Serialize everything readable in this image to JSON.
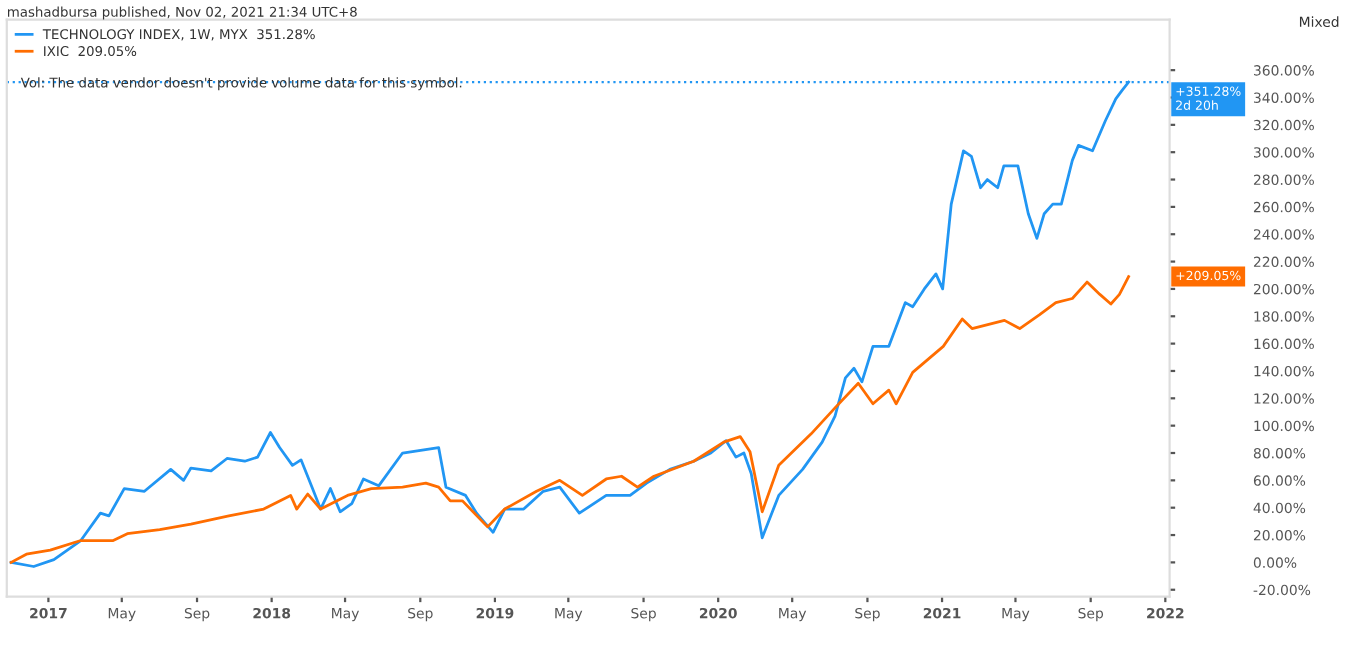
{
  "chart_data": {
    "type": "line",
    "title": "mashadbursa published, Nov 02, 2021 21:34 UTC+8",
    "series": [
      {
        "name": "TECHNOLOGY INDEX, 1W, MYX  351.28%",
        "color": "#2196f3",
        "x": [
          "2016-11-01",
          "2016-12-08",
          "2017-01-10",
          "2017-02-23",
          "2017-03-27",
          "2017-04-10",
          "2017-05-05",
          "2017-06-07",
          "2017-07-20",
          "2017-08-10",
          "2017-08-22",
          "2017-09-24",
          "2017-10-20",
          "2017-11-18",
          "2017-12-09",
          "2017-12-30",
          "2018-01-14",
          "2018-02-04",
          "2018-02-18",
          "2018-03-08",
          "2018-03-22",
          "2018-04-07",
          "2018-04-23",
          "2018-05-12",
          "2018-05-31",
          "2018-06-25",
          "2018-08-03",
          "2018-10-01",
          "2018-10-13",
          "2018-11-14",
          "2018-12-02",
          "2018-12-29",
          "2019-01-17",
          "2019-02-17",
          "2019-03-21",
          "2019-04-17",
          "2019-05-19",
          "2019-07-02",
          "2019-08-10",
          "2019-09-06",
          "2019-10-14",
          "2019-11-22",
          "2019-12-20",
          "2020-01-14",
          "2020-01-30",
          "2020-02-12",
          "2020-02-24",
          "2020-03-13",
          "2020-04-09",
          "2020-05-18",
          "2020-06-19",
          "2020-07-10",
          "2020-07-27",
          "2020-08-10",
          "2020-08-23",
          "2020-09-10",
          "2020-10-06",
          "2020-11-02",
          "2020-11-14",
          "2020-12-03",
          "2020-12-22",
          "2021-01-02",
          "2021-01-16",
          "2021-02-05",
          "2021-02-18",
          "2021-03-05",
          "2021-03-16",
          "2021-04-02",
          "2021-04-12",
          "2021-05-05",
          "2021-05-22",
          "2021-06-05",
          "2021-06-17",
          "2021-07-01",
          "2021-07-15",
          "2021-08-02",
          "2021-08-12",
          "2021-09-04",
          "2021-09-25",
          "2021-10-12",
          "2021-10-22",
          "2021-11-02"
        ],
        "values": [
          0,
          -3,
          2,
          16,
          36,
          34,
          54,
          52,
          68,
          60,
          69,
          67,
          76,
          74,
          77,
          95,
          84,
          71,
          75,
          55,
          39,
          54,
          37,
          43,
          61,
          56,
          80,
          84,
          55,
          49,
          36,
          22,
          39,
          39,
          52,
          55,
          36,
          49,
          49,
          58,
          68,
          74,
          80,
          89,
          77,
          80,
          65,
          18,
          49,
          68,
          88,
          107,
          135,
          142,
          132,
          158,
          158,
          190,
          187,
          200,
          211,
          200,
          262,
          301,
          297,
          274,
          280,
          274,
          290,
          290,
          255,
          237,
          255,
          262,
          262,
          294,
          305,
          301,
          323,
          339,
          345,
          351.28
        ]
      },
      {
        "name": "IXIC  209.05%",
        "color": "#ff6d00",
        "x": [
          "2016-11-01",
          "2016-11-26",
          "2017-01-04",
          "2017-02-23",
          "2017-04-17",
          "2017-05-10",
          "2017-07-02",
          "2017-08-22",
          "2017-10-23",
          "2017-12-19",
          "2018-02-01",
          "2018-02-11",
          "2018-03-01",
          "2018-03-22",
          "2018-05-05",
          "2018-06-13",
          "2018-08-03",
          "2018-09-10",
          "2018-10-01",
          "2018-10-20",
          "2018-11-09",
          "2018-12-20",
          "2019-01-17",
          "2019-03-10",
          "2019-04-17",
          "2019-05-24",
          "2019-07-02",
          "2019-07-27",
          "2019-08-22",
          "2019-09-18",
          "2019-11-22",
          "2020-01-10",
          "2020-02-06",
          "2020-02-22",
          "2020-03-13",
          "2020-04-09",
          "2020-06-01",
          "2020-07-10",
          "2020-08-17",
          "2020-09-10",
          "2020-10-06",
          "2020-10-18",
          "2020-11-14",
          "2021-01-03",
          "2021-02-03",
          "2021-02-19",
          "2021-04-13",
          "2021-05-08",
          "2021-06-09",
          "2021-07-06",
          "2021-08-02",
          "2021-08-26",
          "2021-09-16",
          "2021-10-04",
          "2021-10-18",
          "2021-11-02"
        ],
        "values": [
          0,
          6,
          9,
          16,
          16,
          21,
          24,
          28,
          34,
          39,
          49,
          39,
          50,
          39,
          49,
          54,
          55,
          58,
          55,
          45,
          45,
          26,
          39,
          52,
          60,
          49,
          61,
          63,
          55,
          63,
          74,
          88,
          92,
          81,
          37,
          71,
          94,
          113,
          131,
          116,
          126,
          116,
          139,
          158,
          178,
          171,
          177,
          171,
          181,
          190,
          193,
          205,
          196,
          189,
          196,
          209.05
        ]
      }
    ],
    "xlim": [
      "2016-10-25",
      "2022-01-08"
    ],
    "xticks": [
      {
        "value": "2017-01-01",
        "label": "2017"
      },
      {
        "value": "2017-05-01",
        "label": "May"
      },
      {
        "value": "2017-09-01",
        "label": "Sep"
      },
      {
        "value": "2018-01-01",
        "label": "2018"
      },
      {
        "value": "2018-05-01",
        "label": "May"
      },
      {
        "value": "2018-09-01",
        "label": "Sep"
      },
      {
        "value": "2019-01-01",
        "label": "2019"
      },
      {
        "value": "2019-05-01",
        "label": "May"
      },
      {
        "value": "2019-09-01",
        "label": "Sep"
      },
      {
        "value": "2020-01-01",
        "label": "2020"
      },
      {
        "value": "2020-05-01",
        "label": "May"
      },
      {
        "value": "2020-09-01",
        "label": "Sep"
      },
      {
        "value": "2021-01-01",
        "label": "2021"
      },
      {
        "value": "2021-05-01",
        "label": "May"
      },
      {
        "value": "2021-09-01",
        "label": "Sep"
      },
      {
        "value": "2022-01-01",
        "label": "2022"
      }
    ],
    "ylim": [
      -25,
      397
    ],
    "yticks": [
      {
        "value": -20,
        "label": "-20.00%"
      },
      {
        "value": 0,
        "label": "0.00%"
      },
      {
        "value": 20,
        "label": "20.00%"
      },
      {
        "value": 40,
        "label": "40.00%"
      },
      {
        "value": 60,
        "label": "60.00%"
      },
      {
        "value": 80,
        "label": "80.00%"
      },
      {
        "value": 100,
        "label": "100.00%"
      },
      {
        "value": 120,
        "label": "120.00%"
      },
      {
        "value": 140,
        "label": "140.00%"
      },
      {
        "value": 160,
        "label": "160.00%"
      },
      {
        "value": 180,
        "label": "180.00%"
      },
      {
        "value": 200,
        "label": "200.00%"
      },
      {
        "value": 220,
        "label": "220.00%"
      },
      {
        "value": 240,
        "label": "240.00%"
      },
      {
        "value": 260,
        "label": "260.00%"
      },
      {
        "value": 280,
        "label": "280.00%"
      },
      {
        "value": 300,
        "label": "300.00%"
      },
      {
        "value": 320,
        "label": "320.00%"
      },
      {
        "value": 340,
        "label": "340.00%"
      },
      {
        "value": 360,
        "label": "360.00%"
      }
    ],
    "ref_lines": [
      {
        "axis": "y",
        "value": 351.28,
        "label": "+351.28%\n2d 20h",
        "color": "#2196f3",
        "line_style": "dotted"
      }
    ],
    "annotations": [
      "Vol: The data vendor doesn't provide volume data for this symbol.",
      "Mixed",
      "+209.05%"
    ],
    "legend": "top left",
    "grid": false,
    "marker": "none",
    "line_style": "solid"
  }
}
